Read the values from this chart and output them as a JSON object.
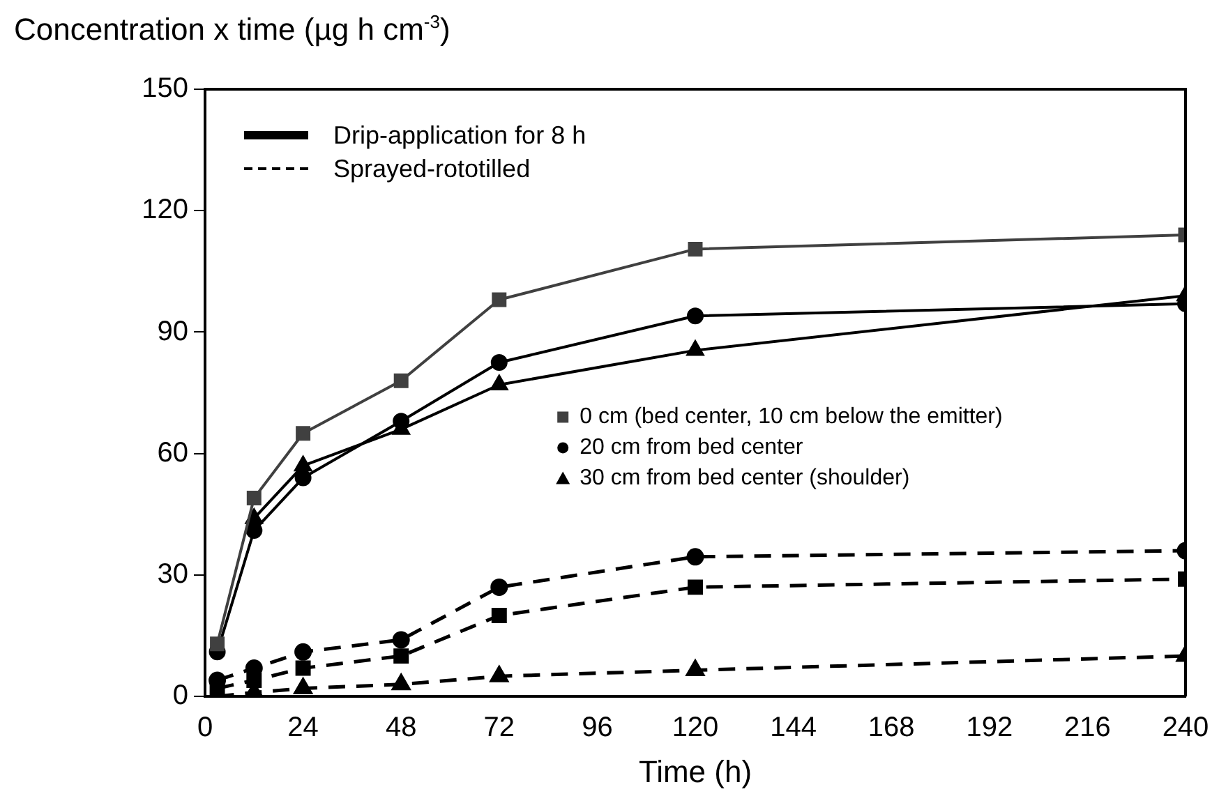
{
  "chart_data": {
    "type": "line",
    "ylabel": "Concentration x time (µg h cm$^{-3}$)",
    "xlabel": "Time (h)",
    "x": [
      3,
      12,
      24,
      48,
      72,
      120,
      240
    ],
    "xlim": [
      0,
      240
    ],
    "xticks": [
      0,
      24,
      48,
      72,
      96,
      120,
      144,
      168,
      192,
      216,
      240
    ],
    "ylim": [
      0,
      150
    ],
    "yticks": [
      0,
      30,
      60,
      90,
      120,
      150
    ],
    "grid": false,
    "legend": "right",
    "annotations": [
      "Drip-application for 8 h",
      "Sprayed-rototilled"
    ],
    "series": [
      {
        "name": "0 cm (bed center, 10 cm below the emitter)",
        "color": "#404040",
        "marker": "square",
        "line_style": "solid",
        "values": [
          13,
          49,
          65,
          78,
          98,
          110.5,
          114
        ]
      },
      {
        "name": "20 cm from bed center",
        "color": "#000000",
        "marker": "circle",
        "line_style": "solid",
        "values": [
          11,
          41,
          54,
          68,
          82.5,
          94,
          97
        ]
      },
      {
        "name": "30 cm from bed center (shoulder)",
        "color": "#000000",
        "marker": "triangle",
        "line_style": "solid",
        "values": [
          null,
          44,
          57,
          66,
          77,
          85.5,
          99
        ]
      },
      {
        "color": "#000000",
        "marker": "square",
        "line_style": "dashed",
        "values": [
          2,
          4,
          7,
          10,
          20,
          27,
          29
        ]
      },
      {
        "color": "#000000",
        "marker": "circle",
        "line_style": "dashed",
        "values": [
          4,
          7,
          11,
          14,
          27,
          34.5,
          36
        ]
      },
      {
        "color": "#000000",
        "marker": "triangle",
        "line_style": "dashed",
        "values": [
          0,
          1,
          2,
          3,
          5,
          6.5,
          10
        ]
      }
    ]
  }
}
